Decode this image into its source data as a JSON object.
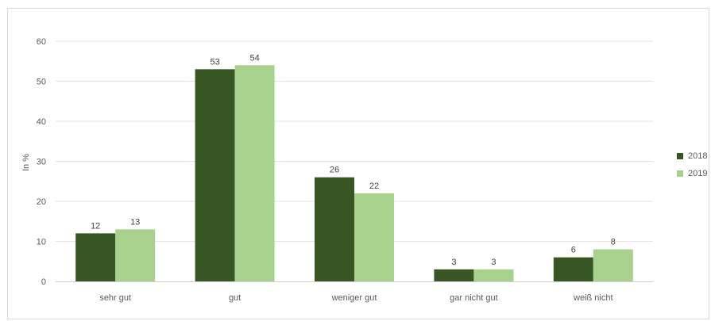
{
  "chart_data": {
    "type": "bar",
    "ylabel": "In %",
    "ylim": [
      0,
      60
    ],
    "yticks": [
      "0",
      "10",
      "20",
      "30",
      "40",
      "50",
      "60"
    ],
    "categories": [
      "sehr gut",
      "gut",
      "weniger gut",
      "gar nicht gut",
      "weiß nicht"
    ],
    "series": [
      {
        "name": "2018",
        "color": "#375623",
        "values": [
          12,
          53,
          26,
          3,
          6
        ]
      },
      {
        "name": "2019",
        "color": "#a9d18e",
        "values": [
          13,
          54,
          22,
          3,
          8
        ]
      }
    ],
    "grid": true,
    "legend_position": "right"
  }
}
